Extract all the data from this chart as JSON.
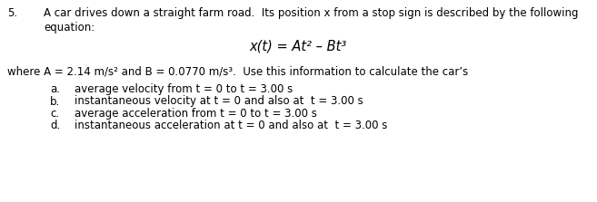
{
  "number": "5.",
  "line1": "A car drives down a straight farm road.  Its position x from a stop sign is described by the following",
  "line2": "equation:",
  "equation": "x(t) = At² – Bt³",
  "where_line": "where A = 2.14 m/s² and B = 0.0770 m/s³.  Use this information to calculate the car’s",
  "item_labels": [
    "a.",
    "b.",
    "c.",
    "d."
  ],
  "item_texts": [
    "average velocity from t = 0 to t = 3.00 s",
    "instantaneous velocity at t = 0 and also at  t = 3.00 s",
    "average acceleration from t = 0 to t = 3.00 s",
    "instantaneous acceleration at t = 0 and also at  t = 3.00 s"
  ],
  "bg_color": "#ffffff",
  "text_color": "#000000",
  "font_size_body": 8.5,
  "font_size_eq": 10.5,
  "fig_width": 6.57,
  "fig_height": 2.23,
  "dpi": 100
}
